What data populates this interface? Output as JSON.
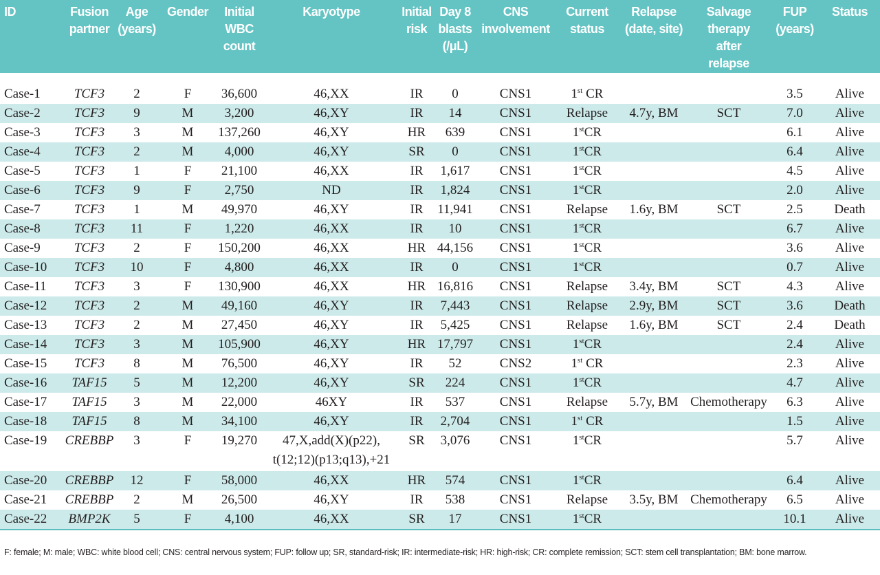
{
  "table": {
    "headers": [
      {
        "key": "id",
        "lines": [
          "ID"
        ]
      },
      {
        "key": "fusion",
        "lines": [
          "Fusion",
          "partner"
        ]
      },
      {
        "key": "age",
        "lines": [
          "Age",
          "(years)"
        ]
      },
      {
        "key": "gender",
        "lines": [
          "Gender"
        ]
      },
      {
        "key": "wbc",
        "lines": [
          "Initial",
          "WBC",
          "count"
        ]
      },
      {
        "key": "karyotype",
        "lines": [
          "Karyotype"
        ]
      },
      {
        "key": "risk",
        "lines": [
          "Initial",
          "risk"
        ]
      },
      {
        "key": "blasts",
        "lines": [
          "Day 8",
          "blasts",
          "(/μL)"
        ]
      },
      {
        "key": "cns",
        "lines": [
          "CNS",
          "involvement"
        ]
      },
      {
        "key": "current",
        "lines": [
          "Current",
          "status"
        ]
      },
      {
        "key": "relapse",
        "lines": [
          "Relapse",
          "(date, site)"
        ]
      },
      {
        "key": "salvage",
        "lines": [
          "Salvage",
          "therapy",
          "after",
          "relapse"
        ]
      },
      {
        "key": "fup",
        "lines": [
          "FUP",
          "(years)"
        ]
      },
      {
        "key": "status",
        "lines": [
          "Status"
        ]
      }
    ],
    "rows": [
      {
        "id": "Case-1",
        "fusion": "TCF3",
        "age": "2",
        "gender": "F",
        "wbc": "36,600",
        "karyotype": [
          "46,XX"
        ],
        "risk": "IR",
        "blasts": "0",
        "cns": "CNS1",
        "current_main": "1",
        "current_sup": "st",
        "current_rest": " CR",
        "relapse": "",
        "salvage": "",
        "fup": "3.5",
        "status": "Alive"
      },
      {
        "id": "Case-2",
        "fusion": "TCF3",
        "age": "9",
        "gender": "M",
        "wbc": "3,200",
        "karyotype": [
          "46,XY"
        ],
        "risk": "IR",
        "blasts": "14",
        "cns": "CNS1",
        "current_main": "Relapse",
        "current_sup": "",
        "current_rest": "",
        "relapse": "4.7y, BM",
        "salvage": "SCT",
        "fup": "7.0",
        "status": "Alive"
      },
      {
        "id": "Case-3",
        "fusion": "TCF3",
        "age": "3",
        "gender": "M",
        "wbc": "137,260",
        "karyotype": [
          "46,XY"
        ],
        "risk": "HR",
        "blasts": "639",
        "cns": "CNS1",
        "current_main": "1",
        "current_sup": "st",
        "current_rest": "CR",
        "relapse": "",
        "salvage": "",
        "fup": "6.1",
        "status": "Alive"
      },
      {
        "id": "Case-4",
        "fusion": "TCF3",
        "age": "2",
        "gender": "M",
        "wbc": "4,000",
        "karyotype": [
          "46,XY"
        ],
        "risk": "SR",
        "blasts": "0",
        "cns": "CNS1",
        "current_main": "1",
        "current_sup": "st",
        "current_rest": "CR",
        "relapse": "",
        "salvage": "",
        "fup": "6.4",
        "status": "Alive"
      },
      {
        "id": "Case-5",
        "fusion": "TCF3",
        "age": "1",
        "gender": "F",
        "wbc": "21,100",
        "karyotype": [
          "46,XX"
        ],
        "risk": "IR",
        "blasts": "1,617",
        "cns": "CNS1",
        "current_main": "1",
        "current_sup": "st",
        "current_rest": "CR",
        "relapse": "",
        "salvage": "",
        "fup": "4.5",
        "status": "Alive"
      },
      {
        "id": "Case-6",
        "fusion": "TCF3",
        "age": "9",
        "gender": "F",
        "wbc": "2,750",
        "karyotype": [
          "ND"
        ],
        "risk": "IR",
        "blasts": "1,824",
        "cns": "CNS1",
        "current_main": "1",
        "current_sup": "st",
        "current_rest": "CR",
        "relapse": "",
        "salvage": "",
        "fup": "2.0",
        "status": "Alive"
      },
      {
        "id": "Case-7",
        "fusion": "TCF3",
        "age": "1",
        "gender": "M",
        "wbc": "49,970",
        "karyotype": [
          "46,XY"
        ],
        "risk": "IR",
        "blasts": "11,941",
        "cns": "CNS1",
        "current_main": "Relapse",
        "current_sup": "",
        "current_rest": "",
        "relapse": "1.6y, BM",
        "salvage": "SCT",
        "fup": "2.5",
        "status": "Death"
      },
      {
        "id": "Case-8",
        "fusion": "TCF3",
        "age": "11",
        "gender": "F",
        "wbc": "1,220",
        "karyotype": [
          "46,XX"
        ],
        "risk": "IR",
        "blasts": "10",
        "cns": "CNS1",
        "current_main": "1",
        "current_sup": "st",
        "current_rest": "CR",
        "relapse": "",
        "salvage": "",
        "fup": "6.7",
        "status": "Alive"
      },
      {
        "id": "Case-9",
        "fusion": "TCF3",
        "age": "2",
        "gender": "F",
        "wbc": "150,200",
        "karyotype": [
          "46,XX"
        ],
        "risk": "HR",
        "blasts": "44,156",
        "cns": "CNS1",
        "current_main": "1",
        "current_sup": "st",
        "current_rest": "CR",
        "relapse": "",
        "salvage": "",
        "fup": "3.6",
        "status": "Alive"
      },
      {
        "id": "Case-10",
        "fusion": "TCF3",
        "age": "10",
        "gender": "F",
        "wbc": "4,800",
        "karyotype": [
          "46,XX"
        ],
        "risk": "IR",
        "blasts": "0",
        "cns": "CNS1",
        "current_main": "1",
        "current_sup": "st",
        "current_rest": "CR",
        "relapse": "",
        "salvage": "",
        "fup": "0.7",
        "status": "Alive"
      },
      {
        "id": "Case-11",
        "fusion": "TCF3",
        "age": "3",
        "gender": "F",
        "wbc": "130,900",
        "karyotype": [
          "46,XX"
        ],
        "risk": "HR",
        "blasts": "16,816",
        "cns": "CNS1",
        "current_main": "Relapse",
        "current_sup": "",
        "current_rest": "",
        "relapse": "3.4y, BM",
        "salvage": "SCT",
        "fup": "4.3",
        "status": "Alive"
      },
      {
        "id": "Case-12",
        "fusion": "TCF3",
        "age": "2",
        "gender": "M",
        "wbc": "49,160",
        "karyotype": [
          "46,XY"
        ],
        "risk": "IR",
        "blasts": "7,443",
        "cns": "CNS1",
        "current_main": "Relapse",
        "current_sup": "",
        "current_rest": "",
        "relapse": "2.9y, BM",
        "salvage": "SCT",
        "fup": "3.6",
        "status": "Death"
      },
      {
        "id": "Case-13",
        "fusion": "TCF3",
        "age": "2",
        "gender": "M",
        "wbc": "27,450",
        "karyotype": [
          "46,XY"
        ],
        "risk": "IR",
        "blasts": "5,425",
        "cns": "CNS1",
        "current_main": "Relapse",
        "current_sup": "",
        "current_rest": "",
        "relapse": "1.6y, BM",
        "salvage": "SCT",
        "fup": "2.4",
        "status": "Death"
      },
      {
        "id": "Case-14",
        "fusion": "TCF3",
        "age": "3",
        "gender": "M",
        "wbc": "105,900",
        "karyotype": [
          "46,XY"
        ],
        "risk": "HR",
        "blasts": "17,797",
        "cns": "CNS1",
        "current_main": "1",
        "current_sup": "st",
        "current_rest": "CR",
        "relapse": "",
        "salvage": "",
        "fup": "2.4",
        "status": "Alive"
      },
      {
        "id": "Case-15",
        "fusion": "TCF3",
        "age": "8",
        "gender": "M",
        "wbc": "76,500",
        "karyotype": [
          "46,XY"
        ],
        "risk": "IR",
        "blasts": "52",
        "cns": "CNS2",
        "current_main": "1",
        "current_sup": "st",
        "current_rest": " CR",
        "relapse": "",
        "salvage": "",
        "fup": "2.3",
        "status": "Alive"
      },
      {
        "id": "Case-16",
        "fusion": "TAF15",
        "age": "5",
        "gender": "M",
        "wbc": "12,200",
        "karyotype": [
          "46,XY"
        ],
        "risk": "SR",
        "blasts": "224",
        "cns": "CNS1",
        "current_main": "1",
        "current_sup": "st",
        "current_rest": "CR",
        "relapse": "",
        "salvage": "",
        "fup": "4.7",
        "status": "Alive"
      },
      {
        "id": "Case-17",
        "fusion": "TAF15",
        "age": "3",
        "gender": "M",
        "wbc": "22,000",
        "karyotype": [
          "46XY"
        ],
        "risk": "IR",
        "blasts": "537",
        "cns": "CNS1",
        "current_main": "Relapse",
        "current_sup": "",
        "current_rest": "",
        "relapse": "5.7y, BM",
        "salvage": "Chemotherapy",
        "fup": "6.3",
        "status": "Alive"
      },
      {
        "id": "Case-18",
        "fusion": "TAF15",
        "age": "8",
        "gender": "M",
        "wbc": "34,100",
        "karyotype": [
          "46,XY"
        ],
        "risk": "IR",
        "blasts": "2,704",
        "cns": "CNS1",
        "current_main": "1",
        "current_sup": "st",
        "current_rest": " CR",
        "relapse": "",
        "salvage": "",
        "fup": "1.5",
        "status": "Alive"
      },
      {
        "id": "Case-19",
        "fusion": "CREBBP",
        "age": "3",
        "gender": "F",
        "wbc": "19,270",
        "karyotype": [
          "47,X,add(X)(p22),",
          "t(12;12)(p13;q13),+21"
        ],
        "risk": "SR",
        "blasts": "3,076",
        "cns": "CNS1",
        "current_main": "1",
        "current_sup": "st",
        "current_rest": "CR",
        "relapse": "",
        "salvage": "",
        "fup": "5.7",
        "status": "Alive"
      },
      {
        "id": "Case-20",
        "fusion": "CREBBP",
        "age": "12",
        "gender": "F",
        "wbc": "58,000",
        "karyotype": [
          "46,XX"
        ],
        "risk": "HR",
        "blasts": "574",
        "cns": "CNS1",
        "current_main": "1",
        "current_sup": "st",
        "current_rest": "CR",
        "relapse": "",
        "salvage": "",
        "fup": "6.4",
        "status": "Alive"
      },
      {
        "id": "Case-21",
        "fusion": "CREBBP",
        "age": "2",
        "gender": "M",
        "wbc": "26,500",
        "karyotype": [
          "46,XY"
        ],
        "risk": "IR",
        "blasts": "538",
        "cns": "CNS1",
        "current_main": "Relapse",
        "current_sup": "",
        "current_rest": "",
        "relapse": "3.5y, BM",
        "salvage": "Chemotherapy",
        "fup": "6.5",
        "status": "Alive"
      },
      {
        "id": "Case-22",
        "fusion": "BMP2K",
        "age": "5",
        "gender": "F",
        "wbc": "4,100",
        "karyotype": [
          "46,XX"
        ],
        "risk": "SR",
        "blasts": "17",
        "cns": "CNS1",
        "current_main": "1",
        "current_sup": "st",
        "current_rest": "CR",
        "relapse": "",
        "salvage": "",
        "fup": "10.1",
        "status": "Alive"
      }
    ],
    "footnote": "F: female; M: male; WBC: white blood cell; CNS: central nervous system; FUP: follow up; SR, standard-risk; IR: intermediate-risk; HR: high-risk; CR: complete remission; SCT: stem cell transplantation; BM: bone marrow."
  },
  "colors": {
    "header_bg": "#64c3c3",
    "row_shade": "#cdeaea",
    "text": "#231f20"
  }
}
